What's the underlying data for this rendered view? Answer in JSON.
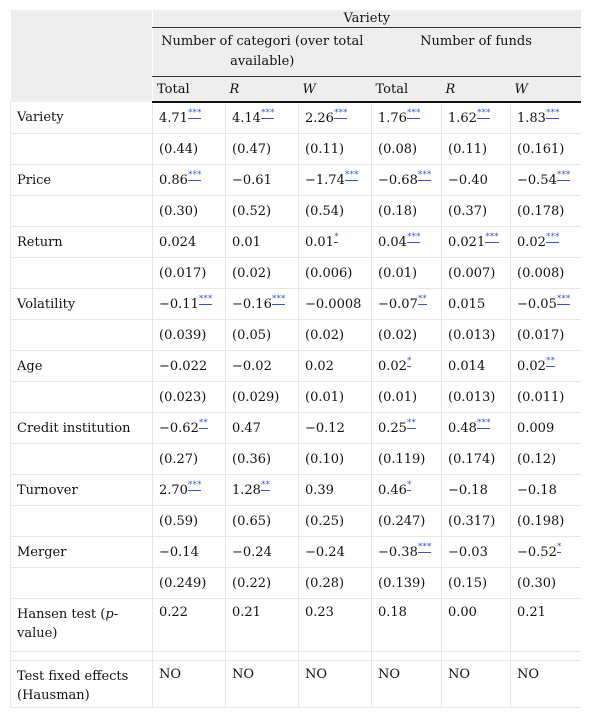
{
  "header": {
    "variety": "Variety",
    "group1": "Number of categori (over total available)",
    "group2": "Number of funds",
    "subcols": [
      "Total",
      "R",
      "W",
      "Total",
      "R",
      "W"
    ]
  },
  "rows": [
    {
      "label": "Variety",
      "coef": [
        [
          "4.71",
          "***"
        ],
        [
          "4.14",
          "***"
        ],
        [
          "2.26",
          "***"
        ],
        [
          "1.76",
          "***"
        ],
        [
          "1.62",
          "***"
        ],
        [
          "1.83",
          "***"
        ]
      ],
      "se": [
        "(0.44)",
        "(0.47)",
        "(0.11)",
        "(0.08)",
        "(0.11)",
        "(0.161)"
      ]
    },
    {
      "label": "Price",
      "coef": [
        [
          "0.86",
          "***"
        ],
        [
          "−0.61",
          ""
        ],
        [
          "−1.74",
          "***"
        ],
        [
          "−0.68",
          "***"
        ],
        [
          "−0.40",
          ""
        ],
        [
          "−0.54",
          "***"
        ]
      ],
      "se": [
        "(0.30)",
        "(0.52)",
        "(0.54)",
        "(0.18)",
        "(0.37)",
        "(0.178)"
      ]
    },
    {
      "label": "Return",
      "coef": [
        [
          "0.024",
          ""
        ],
        [
          "0.01",
          ""
        ],
        [
          "0.01",
          "*"
        ],
        [
          "0.04",
          "***"
        ],
        [
          "0.021",
          "***"
        ],
        [
          "0.02",
          "***"
        ]
      ],
      "se": [
        "(0.017)",
        "(0.02)",
        "(0.006)",
        "(0.01)",
        "(0.007)",
        "(0.008)"
      ]
    },
    {
      "label": "Volatility",
      "coef": [
        [
          "−0.11",
          "***"
        ],
        [
          "−0.16",
          "***"
        ],
        [
          "−0.0008",
          ""
        ],
        [
          "−0.07",
          "**"
        ],
        [
          "0.015",
          ""
        ],
        [
          "−0.05",
          "***"
        ]
      ],
      "se": [
        "(0.039)",
        "(0.05)",
        "(0.02)",
        "(0.02)",
        "(0.013)",
        "(0.017)"
      ]
    },
    {
      "label": "Age",
      "coef": [
        [
          "−0.022",
          ""
        ],
        [
          "−0.02",
          ""
        ],
        [
          "0.02",
          ""
        ],
        [
          "0.02",
          "*"
        ],
        [
          "0.014",
          ""
        ],
        [
          "0.02",
          "**"
        ]
      ],
      "se": [
        "(0.023)",
        "(0.029)",
        "(0.01)",
        "(0.01)",
        "(0.013)",
        "(0.011)"
      ]
    },
    {
      "label": "Credit institution",
      "coef": [
        [
          "−0.62",
          "**"
        ],
        [
          "0.47",
          ""
        ],
        [
          "−0.12",
          ""
        ],
        [
          "0.25",
          "**"
        ],
        [
          "0.48",
          "***"
        ],
        [
          "0.009",
          ""
        ]
      ],
      "se": [
        "(0.27)",
        "(0.36)",
        "(0.10)",
        "(0.119)",
        "(0.174)",
        "(0.12)"
      ]
    },
    {
      "label": "Turnover",
      "coef": [
        [
          "2.70",
          "***"
        ],
        [
          "1.28",
          "**"
        ],
        [
          "0.39",
          ""
        ],
        [
          "0.46",
          "*"
        ],
        [
          "−0.18",
          ""
        ],
        [
          "−0.18",
          ""
        ]
      ],
      "se": [
        "(0.59)",
        "(0.65)",
        "(0.25)",
        "(0.247)",
        "(0.317)",
        "(0.198)"
      ]
    },
    {
      "label": "Merger",
      "coef": [
        [
          "−0.14",
          ""
        ],
        [
          "−0.24",
          ""
        ],
        [
          "−0.24",
          ""
        ],
        [
          "−0.38",
          "***"
        ],
        [
          "−0.03",
          ""
        ],
        [
          "−0.52",
          "*"
        ]
      ],
      "se": [
        "(0.249)",
        "(0.22)",
        "(0.28)",
        "(0.139)",
        "(0.15)",
        "(0.30)"
      ]
    }
  ],
  "hansen": {
    "label": "Hansen test (p-value)",
    "values": [
      "0.22",
      "0.21",
      "0.23",
      "0.18",
      "0.00",
      "0.21"
    ]
  },
  "hausman": {
    "label": "Test fixed effects (Hausman)",
    "values": [
      "NO",
      "NO",
      "NO",
      "NO",
      "NO",
      "NO"
    ]
  }
}
